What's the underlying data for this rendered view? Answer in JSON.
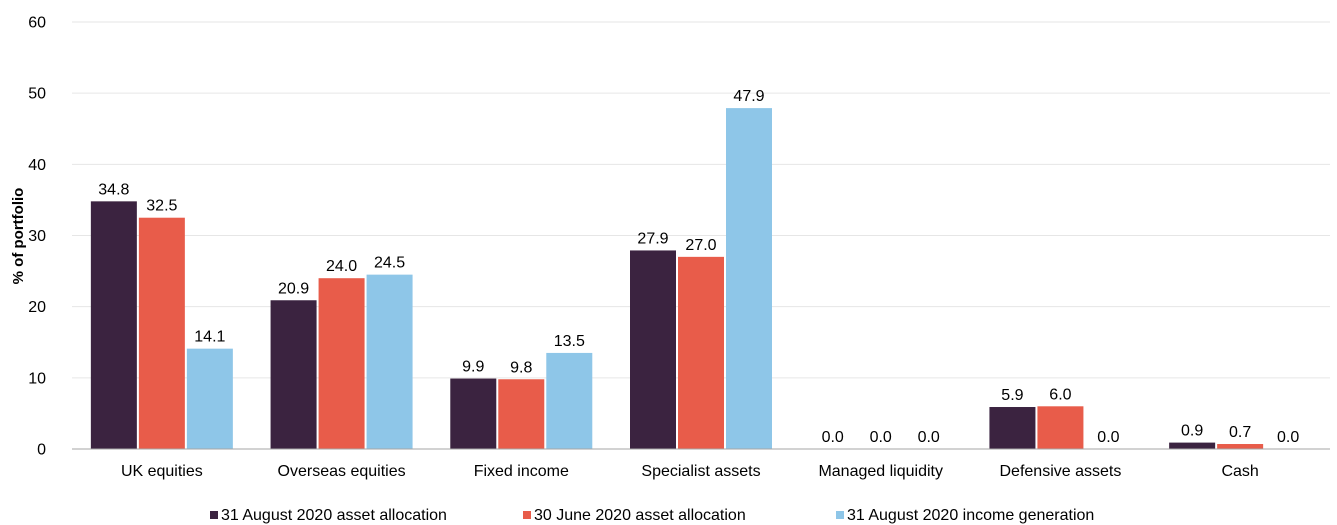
{
  "chart_data": {
    "type": "bar",
    "categories": [
      "UK equities",
      "Overseas equities",
      "Fixed income",
      "Specialist assets",
      "Managed liquidity",
      "Defensive assets",
      "Cash"
    ],
    "series": [
      {
        "name": "31 August 2020 asset allocation",
        "color": "#3b2340",
        "values": [
          34.8,
          20.9,
          9.9,
          27.9,
          0.0,
          5.9,
          0.9
        ]
      },
      {
        "name": "30 June 2020 asset allocation",
        "color": "#e85c4a",
        "values": [
          32.5,
          24.0,
          9.8,
          27.0,
          0.0,
          6.0,
          0.7
        ]
      },
      {
        "name": "31 August 2020 income generation",
        "color": "#8ec6e8",
        "values": [
          14.1,
          24.5,
          13.5,
          47.9,
          0.0,
          0.0,
          0.0
        ]
      }
    ],
    "title": "",
    "xlabel": "",
    "ylabel": "% of portfolio",
    "ylim": [
      0,
      60
    ],
    "yticks": [
      0,
      10,
      20,
      30,
      40,
      50,
      60
    ],
    "grid": true,
    "legend_position": "bottom"
  }
}
